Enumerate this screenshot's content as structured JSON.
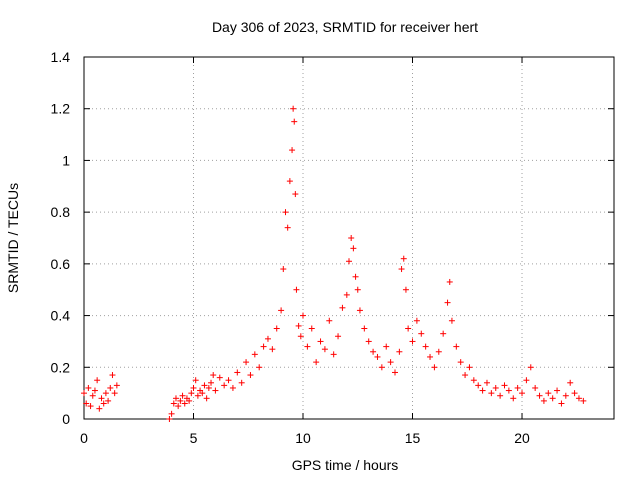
{
  "chart_data": {
    "type": "scatter",
    "title": "Day 306 of 2023, SRMTID for receiver hert",
    "xlabel": "GPS time / hours",
    "ylabel": "SRMTID / TECUs",
    "xlim": [
      0,
      24.2
    ],
    "ylim": [
      0,
      1.4
    ],
    "xticks": [
      0,
      5,
      10,
      15,
      20
    ],
    "xtick_labels": [
      "0",
      "5",
      "10",
      "15",
      "20"
    ],
    "yticks": [
      0,
      0.2,
      0.4,
      0.6,
      0.8,
      1,
      1.2,
      1.4
    ],
    "ytick_labels": [
      "0",
      "0.2",
      "0.4",
      "0.6",
      "0.8",
      "1",
      "1.2",
      "1.4"
    ],
    "grid": true,
    "marker": "+",
    "color": "#ff0000",
    "series": [
      {
        "name": "SRMTID",
        "x": [
          0.0,
          0.1,
          0.2,
          0.3,
          0.4,
          0.5,
          0.6,
          0.7,
          0.8,
          0.9,
          1.0,
          1.1,
          1.2,
          1.3,
          1.4,
          1.5,
          3.9,
          4.0,
          4.1,
          4.2,
          4.3,
          4.4,
          4.5,
          4.6,
          4.7,
          4.8,
          4.9,
          5.0,
          5.1,
          5.2,
          5.3,
          5.4,
          5.5,
          5.6,
          5.7,
          5.8,
          5.9,
          6.0,
          6.2,
          6.4,
          6.6,
          6.8,
          7.0,
          7.2,
          7.4,
          7.6,
          7.8,
          8.0,
          8.2,
          8.4,
          8.6,
          8.8,
          9.0,
          9.1,
          9.2,
          9.3,
          9.4,
          9.5,
          9.55,
          9.6,
          9.65,
          9.7,
          9.8,
          9.9,
          10.0,
          10.2,
          10.4,
          10.6,
          10.8,
          11.0,
          11.2,
          11.4,
          11.6,
          11.8,
          12.0,
          12.1,
          12.2,
          12.3,
          12.4,
          12.5,
          12.6,
          12.8,
          13.0,
          13.2,
          13.4,
          13.6,
          13.8,
          14.0,
          14.2,
          14.4,
          14.5,
          14.6,
          14.7,
          14.8,
          15.0,
          15.2,
          15.4,
          15.6,
          15.8,
          16.0,
          16.2,
          16.4,
          16.6,
          16.7,
          16.8,
          17.0,
          17.2,
          17.4,
          17.6,
          17.8,
          18.0,
          18.2,
          18.4,
          18.6,
          18.8,
          19.0,
          19.2,
          19.4,
          19.6,
          19.8,
          20.0,
          20.2,
          20.4,
          20.6,
          20.8,
          21.0,
          21.2,
          21.4,
          21.6,
          21.8,
          22.0,
          22.2,
          22.4,
          22.6,
          22.8
        ],
        "y": [
          0.1,
          0.06,
          0.12,
          0.05,
          0.09,
          0.11,
          0.15,
          0.04,
          0.08,
          0.06,
          0.1,
          0.07,
          0.12,
          0.17,
          0.1,
          0.13,
          0.0,
          0.02,
          0.06,
          0.08,
          0.05,
          0.07,
          0.09,
          0.06,
          0.08,
          0.07,
          0.1,
          0.12,
          0.15,
          0.09,
          0.11,
          0.1,
          0.13,
          0.08,
          0.12,
          0.14,
          0.17,
          0.11,
          0.16,
          0.13,
          0.15,
          0.12,
          0.18,
          0.14,
          0.22,
          0.17,
          0.25,
          0.2,
          0.28,
          0.31,
          0.27,
          0.35,
          0.42,
          0.58,
          0.8,
          0.74,
          0.92,
          1.04,
          1.2,
          1.15,
          0.87,
          0.5,
          0.36,
          0.32,
          0.4,
          0.28,
          0.35,
          0.22,
          0.3,
          0.27,
          0.38,
          0.25,
          0.32,
          0.43,
          0.48,
          0.61,
          0.7,
          0.66,
          0.55,
          0.5,
          0.42,
          0.35,
          0.3,
          0.26,
          0.24,
          0.2,
          0.28,
          0.22,
          0.18,
          0.26,
          0.58,
          0.62,
          0.5,
          0.35,
          0.3,
          0.38,
          0.33,
          0.28,
          0.24,
          0.2,
          0.26,
          0.33,
          0.45,
          0.53,
          0.38,
          0.28,
          0.22,
          0.17,
          0.2,
          0.15,
          0.13,
          0.11,
          0.14,
          0.1,
          0.12,
          0.09,
          0.13,
          0.11,
          0.08,
          0.12,
          0.1,
          0.15,
          0.2,
          0.12,
          0.09,
          0.07,
          0.1,
          0.08,
          0.11,
          0.06,
          0.09,
          0.14,
          0.1,
          0.08,
          0.07
        ]
      }
    ]
  }
}
